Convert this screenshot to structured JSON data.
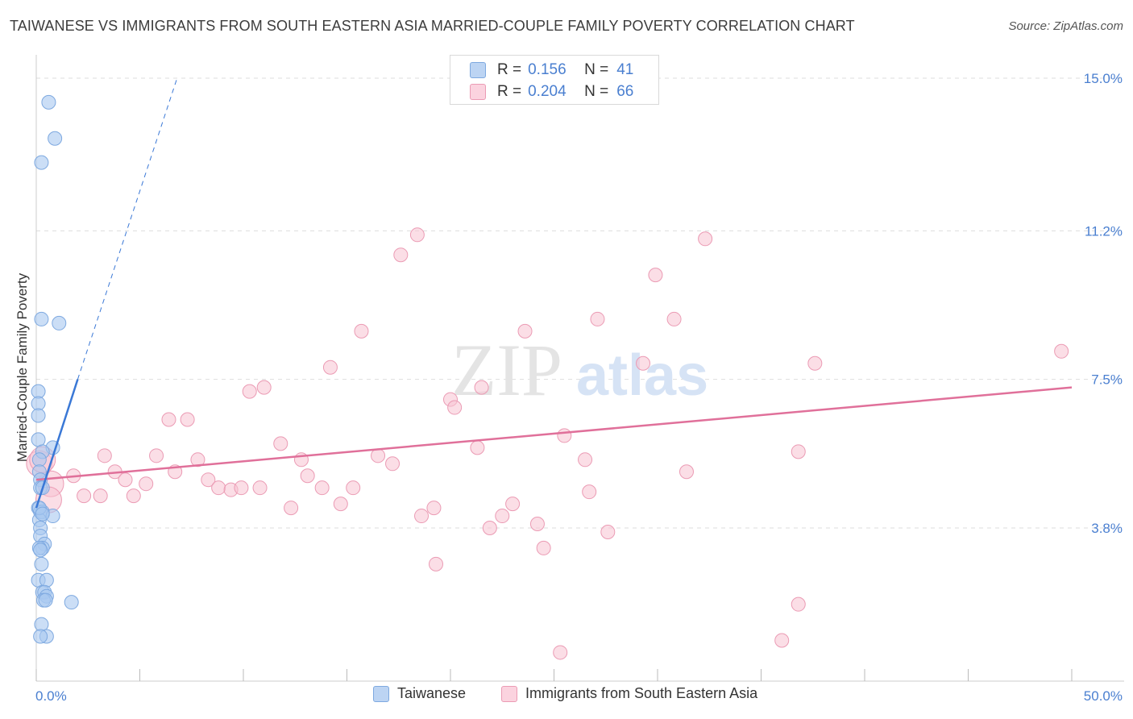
{
  "title": "TAIWANESE VS IMMIGRANTS FROM SOUTH EASTERN ASIA MARRIED-COUPLE FAMILY POVERTY CORRELATION CHART",
  "source": "Source: ZipAtlas.com",
  "watermark": {
    "zip": "ZIP",
    "atlas": "atlas"
  },
  "legend": {
    "series1": {
      "r_label": "R =",
      "r_value": "0.156",
      "n_label": "N =",
      "n_value": "41"
    },
    "series2": {
      "r_label": "R =",
      "r_value": "0.204",
      "n_label": "N =",
      "n_value": "66"
    }
  },
  "bottom_legend": {
    "series1": "Taiwanese",
    "series2": "Immigrants from South Eastern Asia"
  },
  "colors": {
    "blue_fill": "#a9c8f0",
    "blue_stroke": "#7ea9e0",
    "blue_line": "#3a78d6",
    "pink_fill": "#f7c3d2",
    "pink_stroke": "#eb9bb4",
    "pink_line": "#e0709a",
    "axis_text": "#4a7fd0",
    "grid": "#dddddd"
  },
  "chart_data": {
    "type": "scatter",
    "title": "TAIWANESE VS IMMIGRANTS FROM SOUTH EASTERN ASIA MARRIED-COUPLE FAMILY POVERTY CORRELATION CHART",
    "xlabel": "",
    "ylabel": "Married-Couple Family Poverty",
    "xlim": [
      0,
      50
    ],
    "ylim": [
      0,
      15
    ],
    "x_tick_labels": [
      "0.0%",
      "50.0%"
    ],
    "y_ticks": [
      3.8,
      7.5,
      11.2,
      15.0
    ],
    "y_tick_labels": [
      "3.8%",
      "7.5%",
      "11.2%",
      "15.0%"
    ],
    "series": [
      {
        "name": "Taiwanese",
        "color": "#a9c8f0",
        "r": 0.156,
        "n": 41,
        "points": [
          [
            0.6,
            14.4
          ],
          [
            0.9,
            13.5
          ],
          [
            0.25,
            12.9
          ],
          [
            1.1,
            8.9
          ],
          [
            0.25,
            9.0
          ],
          [
            0.1,
            7.2
          ],
          [
            0.1,
            6.9
          ],
          [
            0.1,
            6.6
          ],
          [
            0.1,
            6.0
          ],
          [
            0.8,
            5.8
          ],
          [
            0.3,
            5.7
          ],
          [
            0.15,
            5.5
          ],
          [
            0.15,
            5.2
          ],
          [
            0.2,
            5.0
          ],
          [
            0.2,
            4.8
          ],
          [
            0.3,
            4.8
          ],
          [
            0.1,
            4.3
          ],
          [
            0.2,
            4.2
          ],
          [
            0.3,
            4.2
          ],
          [
            0.8,
            4.1
          ],
          [
            0.15,
            4.0
          ],
          [
            0.2,
            3.8
          ],
          [
            0.2,
            3.6
          ],
          [
            0.4,
            3.4
          ],
          [
            0.3,
            3.3
          ],
          [
            0.15,
            3.3
          ],
          [
            0.25,
            2.9
          ],
          [
            0.1,
            2.5
          ],
          [
            0.5,
            2.5
          ],
          [
            0.3,
            2.2
          ],
          [
            0.4,
            2.2
          ],
          [
            0.5,
            2.1
          ],
          [
            0.35,
            2.0
          ],
          [
            0.45,
            2.0
          ],
          [
            1.7,
            1.95
          ],
          [
            0.25,
            1.4
          ],
          [
            0.5,
            1.1
          ],
          [
            0.2,
            1.1
          ],
          [
            0.15,
            4.3
          ],
          [
            0.3,
            4.15
          ],
          [
            0.2,
            3.25
          ]
        ],
        "trend": {
          "x0": 0,
          "y0": 4.3,
          "x1": 2.0,
          "y1": 7.5,
          "dashed_to": [
            6.8,
            15.0
          ]
        }
      },
      {
        "name": "Immigrants from South Eastern Asia",
        "color": "#f7c3d2",
        "r": 0.204,
        "n": 66,
        "points": [
          [
            18.4,
            11.1
          ],
          [
            32.3,
            11.0
          ],
          [
            17.6,
            10.6
          ],
          [
            29.9,
            10.1
          ],
          [
            27.1,
            9.0
          ],
          [
            30.8,
            9.0
          ],
          [
            15.7,
            8.7
          ],
          [
            23.6,
            8.7
          ],
          [
            29.3,
            7.9
          ],
          [
            37.6,
            7.9
          ],
          [
            14.2,
            7.8
          ],
          [
            49.5,
            8.2
          ],
          [
            11.0,
            7.3
          ],
          [
            10.3,
            7.2
          ],
          [
            20.0,
            7.0
          ],
          [
            20.2,
            6.8
          ],
          [
            21.5,
            7.3
          ],
          [
            6.4,
            6.5
          ],
          [
            7.3,
            6.5
          ],
          [
            25.5,
            6.1
          ],
          [
            11.8,
            5.9
          ],
          [
            21.3,
            5.8
          ],
          [
            36.8,
            5.7
          ],
          [
            3.3,
            5.6
          ],
          [
            5.8,
            5.6
          ],
          [
            7.8,
            5.5
          ],
          [
            12.8,
            5.5
          ],
          [
            16.5,
            5.6
          ],
          [
            26.5,
            5.5
          ],
          [
            17.2,
            5.4
          ],
          [
            1.8,
            5.1
          ],
          [
            3.8,
            5.2
          ],
          [
            6.7,
            5.2
          ],
          [
            13.1,
            5.1
          ],
          [
            31.4,
            5.2
          ],
          [
            4.3,
            5.0
          ],
          [
            5.3,
            4.9
          ],
          [
            8.3,
            5.0
          ],
          [
            0.7,
            4.9
          ],
          [
            8.8,
            4.8
          ],
          [
            9.4,
            4.75
          ],
          [
            9.9,
            4.8
          ],
          [
            10.8,
            4.8
          ],
          [
            13.8,
            4.8
          ],
          [
            15.3,
            4.8
          ],
          [
            3.1,
            4.6
          ],
          [
            2.3,
            4.6
          ],
          [
            4.7,
            4.6
          ],
          [
            26.7,
            4.7
          ],
          [
            0.6,
            4.5
          ],
          [
            12.3,
            4.3
          ],
          [
            14.7,
            4.4
          ],
          [
            18.6,
            4.1
          ],
          [
            19.2,
            4.3
          ],
          [
            23.0,
            4.4
          ],
          [
            22.5,
            4.1
          ],
          [
            21.9,
            3.8
          ],
          [
            24.2,
            3.9
          ],
          [
            27.6,
            3.7
          ],
          [
            24.5,
            3.3
          ],
          [
            19.3,
            2.9
          ],
          [
            36.8,
            1.9
          ],
          [
            36.0,
            1.0
          ],
          [
            25.3,
            0.7
          ],
          [
            0.15,
            5.4
          ],
          [
            0.3,
            5.5
          ]
        ],
        "trend": {
          "x0": 0,
          "y0": 5.0,
          "x1": 50,
          "y1": 7.3
        }
      }
    ]
  }
}
